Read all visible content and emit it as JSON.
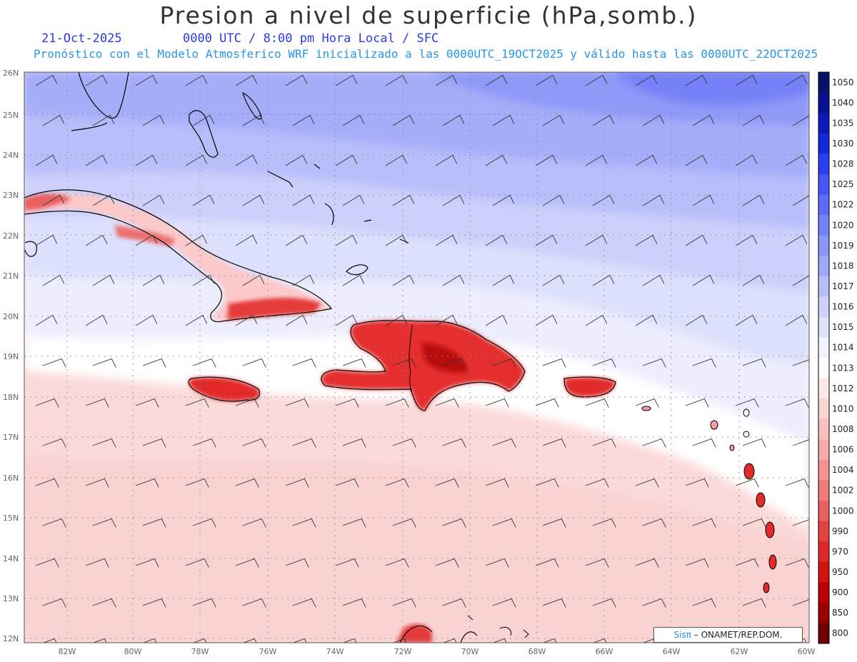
{
  "title": "Presion a nivel de superficie (hPa,somb.)",
  "date": "21-Oct-2025",
  "time_label": "0000 UTC / 8:00 pm Hora Local / SFC",
  "forecast_label": "Pronóstico con el Modelo Atmosferico WRF inicializado a las 0000UTC_19OCT2025 y válido hasta las  0000UTC_22OCT2025",
  "credit": {
    "sis": "Sisπ",
    "org": " – ONAMET/REP.DOM."
  },
  "lat_labels": [
    "26N",
    "25N",
    "24N",
    "23N",
    "22N",
    "21N",
    "20N",
    "19N",
    "18N",
    "17N",
    "16N",
    "15N",
    "14N",
    "13N",
    "12N"
  ],
  "lon_labels": [
    "82W",
    "80W",
    "78W",
    "76W",
    "74W",
    "72W",
    "70W",
    "68W",
    "66W",
    "64W",
    "62W",
    "60W"
  ],
  "colorbar": {
    "levels": [
      "1050",
      "1040",
      "1035",
      "1030",
      "1028",
      "1025",
      "1022",
      "1020",
      "1019",
      "1018",
      "1017",
      "1016",
      "1015",
      "1014",
      "1013",
      "1012",
      "1010",
      "1008",
      "1006",
      "1004",
      "1002",
      "1000",
      "990",
      "970",
      "950",
      "900",
      "850",
      "800"
    ],
    "colors": [
      "#0a1268",
      "#08118f",
      "#0b1ab8",
      "#1428de",
      "#2c3ef2",
      "#4456f4",
      "#5c6cf6",
      "#7482f8",
      "#8a97f8",
      "#a0a9f9",
      "#b7bdfa",
      "#ccd0fb",
      "#e0e3fd",
      "#f2f3fe",
      "#ffffff",
      "#fde8e8",
      "#fbd4d4",
      "#f9c0c0",
      "#f6aaaa",
      "#f39393",
      "#ef7a7a",
      "#ea5f5f",
      "#e44242",
      "#de2727",
      "#d51212",
      "#bc0000",
      "#9a0000",
      "#6e0000"
    ]
  }
}
